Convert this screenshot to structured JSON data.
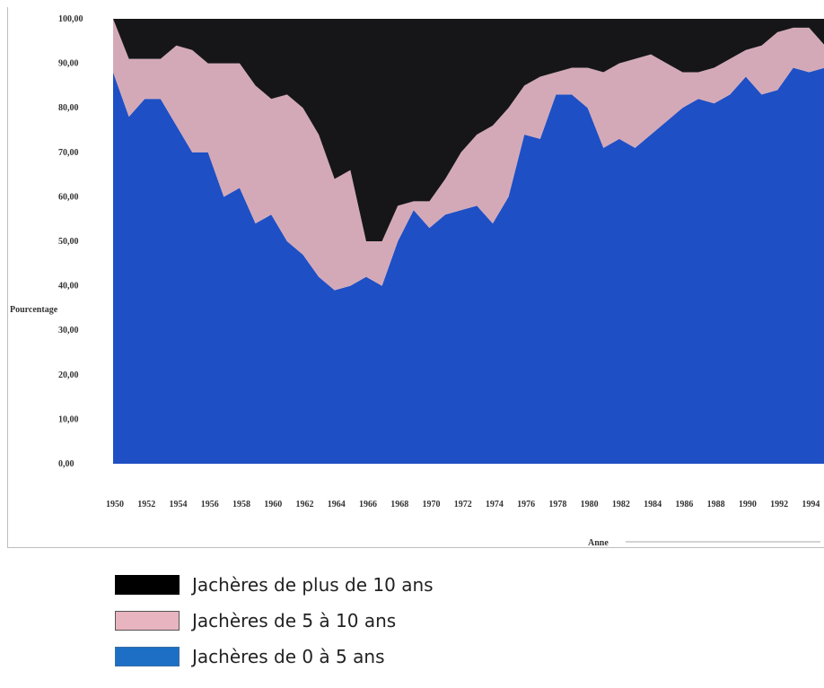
{
  "chart_data": {
    "type": "area",
    "stacked": true,
    "ylabel": "Pourcentage",
    "xlabel": "Anne",
    "ylim": [
      0,
      100
    ],
    "yticks": [
      "0,00",
      "10,00",
      "20,00",
      "30,00",
      "40,00",
      "50,00",
      "60,00",
      "70,00",
      "80,00",
      "90,00",
      "100,00"
    ],
    "xticks": [
      "1950",
      "1952",
      "1954",
      "1956",
      "1958",
      "1960",
      "1962",
      "1964",
      "1966",
      "1968",
      "1970",
      "1972",
      "1974",
      "1976",
      "1978",
      "1980",
      "1982",
      "1984",
      "1986",
      "1988",
      "1990",
      "1992",
      "1994"
    ],
    "x": [
      1950,
      1951,
      1952,
      1953,
      1954,
      1955,
      1956,
      1957,
      1958,
      1959,
      1960,
      1961,
      1962,
      1963,
      1964,
      1965,
      1966,
      1967,
      1968,
      1969,
      1970,
      1971,
      1972,
      1973,
      1974,
      1975,
      1976,
      1977,
      1978,
      1979,
      1980,
      1981,
      1982,
      1983,
      1984,
      1985,
      1986,
      1987,
      1988,
      1989,
      1990,
      1991,
      1992,
      1993,
      1994,
      1995
    ],
    "series": [
      {
        "name": "Jachères de 0 à 5 ans",
        "color": "#1f4fc4",
        "values": [
          88,
          78,
          82,
          82,
          76,
          70,
          70,
          60,
          62,
          54,
          56,
          50,
          47,
          42,
          39,
          40,
          42,
          40,
          50,
          57,
          53,
          56,
          57,
          58,
          54,
          60,
          74,
          73,
          83,
          83,
          80,
          71,
          73,
          71,
          74,
          77,
          80,
          82,
          81,
          83,
          87,
          83,
          84,
          89,
          88,
          89
        ]
      },
      {
        "name": "Jachères de 5 à 10 ans",
        "color": "#d4a9b7",
        "values": [
          12,
          13,
          9,
          9,
          18,
          23,
          20,
          30,
          28,
          31,
          26,
          33,
          33,
          32,
          25,
          26,
          8,
          10,
          8,
          2,
          6,
          8,
          13,
          16,
          22,
          20,
          11,
          14,
          5,
          6,
          9,
          17,
          17,
          20,
          18,
          13,
          8,
          6,
          8,
          8,
          6,
          11,
          13,
          9,
          10,
          5
        ]
      },
      {
        "name": "Jachères de plus de 10 ans",
        "color": "#161618",
        "values": [
          0,
          9,
          9,
          9,
          6,
          7,
          10,
          10,
          10,
          15,
          18,
          17,
          20,
          26,
          36,
          34,
          50,
          50,
          42,
          41,
          41,
          36,
          30,
          26,
          24,
          20,
          15,
          13,
          12,
          11,
          11,
          12,
          10,
          9,
          8,
          10,
          12,
          12,
          11,
          9,
          7,
          6,
          3,
          2,
          2,
          6
        ]
      }
    ],
    "legend_position": "bottom",
    "grid": false
  },
  "legend": {
    "items": [
      {
        "label": "Jachères de plus de 10 ans",
        "color": "#000000",
        "border": "#000000"
      },
      {
        "label": "Jachères de 5 à 10 ans",
        "color": "#e8b4c0",
        "border": "#555555"
      },
      {
        "label": "Jachères de 0 à 5 ans",
        "color": "#1c6fc4",
        "border": "#3b6ea5"
      }
    ]
  }
}
